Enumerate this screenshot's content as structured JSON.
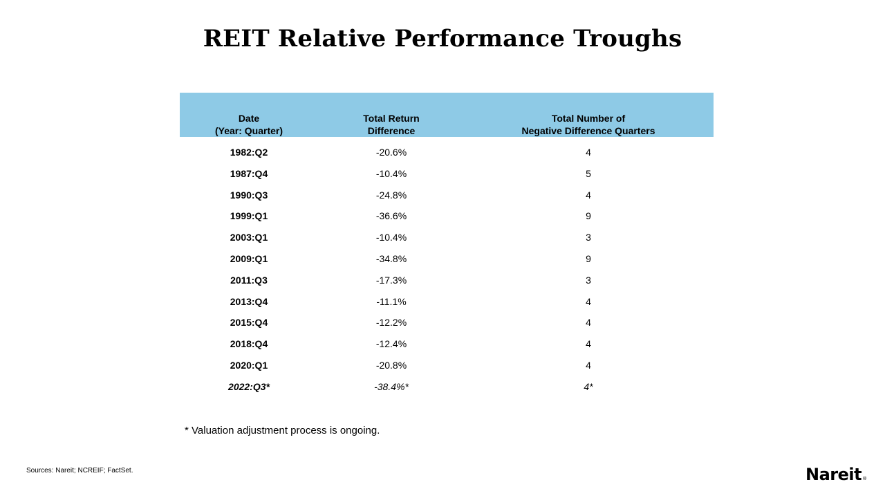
{
  "title": "REIT Relative Performance Troughs",
  "table": {
    "headers": {
      "date": [
        "Date",
        "(Year: Quarter)"
      ],
      "return": [
        "Total Return",
        "Difference"
      ],
      "count": [
        "Total Number of",
        "Negative Difference Quarters"
      ]
    },
    "header_color": "#8ecae6",
    "rows": [
      {
        "date": "1982:Q2",
        "return": "-20.6%",
        "count": "4"
      },
      {
        "date": "1987:Q4",
        "return": "-10.4%",
        "count": "5"
      },
      {
        "date": "1990:Q3",
        "return": "-24.8%",
        "count": "4"
      },
      {
        "date": "1999:Q1",
        "return": "-36.6%",
        "count": "9"
      },
      {
        "date": "2003:Q1",
        "return": "-10.4%",
        "count": "3"
      },
      {
        "date": "2009:Q1",
        "return": "-34.8%",
        "count": "9"
      },
      {
        "date": "2011:Q3",
        "return": "-17.3%",
        "count": "3"
      },
      {
        "date": "2013:Q4",
        "return": "-11.1%",
        "count": "4"
      },
      {
        "date": "2015:Q4",
        "return": "-12.2%",
        "count": "4"
      },
      {
        "date": "2018:Q4",
        "return": "-12.4%",
        "count": "4"
      },
      {
        "date": "2020:Q1",
        "return": "-20.8%",
        "count": "4"
      },
      {
        "date": "2022:Q3*",
        "return": "-38.4%*",
        "count": "4*"
      }
    ]
  },
  "footnote": "* Valuation adjustment process is ongoing.",
  "sources": "Sources: Nareit; NCREIF; FactSet.",
  "logo": {
    "text": "Nareit",
    "mark": "®"
  }
}
